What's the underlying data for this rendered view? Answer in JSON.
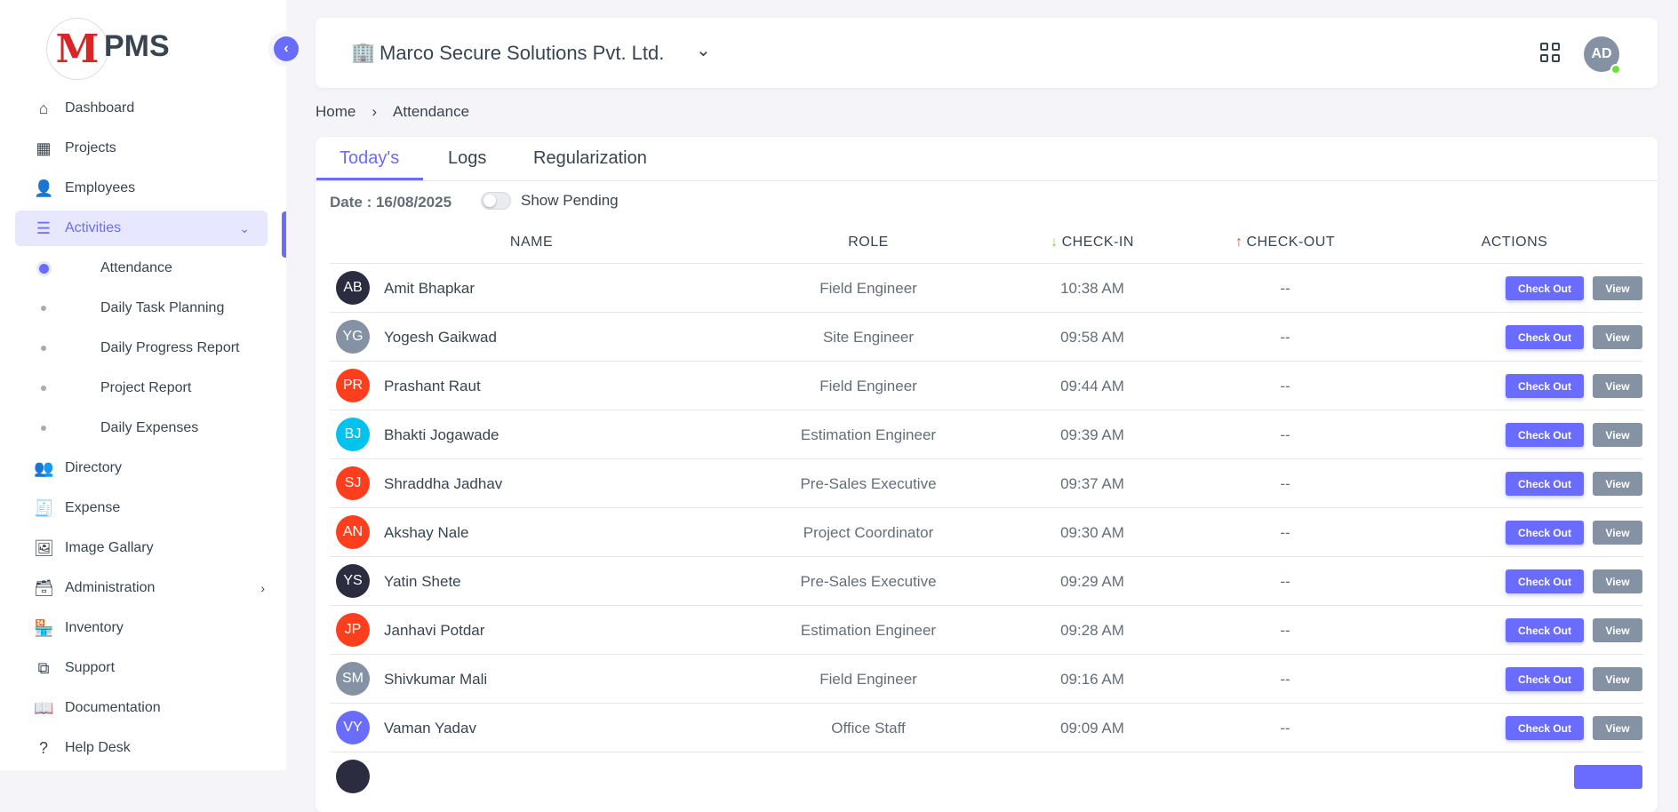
{
  "brand": {
    "name": "PMS",
    "logo_letter": "M"
  },
  "sidebar": {
    "items": [
      {
        "label": "Dashboard",
        "icon": "home-icon",
        "glyph": "⌂"
      },
      {
        "label": "Projects",
        "icon": "building-icon",
        "glyph": "▦"
      },
      {
        "label": "Employees",
        "icon": "user-icon",
        "glyph": "👤"
      },
      {
        "label": "Activities",
        "icon": "list-icon",
        "glyph": "☰",
        "active": true,
        "expanded": true
      },
      {
        "label": "Directory",
        "icon": "contacts-icon",
        "glyph": "👥"
      },
      {
        "label": "Expense",
        "icon": "receipt-icon",
        "glyph": "🧾"
      },
      {
        "label": "Image Gallary",
        "icon": "gallery-icon",
        "glyph": "🖼"
      },
      {
        "label": "Administration",
        "icon": "archive-icon",
        "glyph": "🗃"
      },
      {
        "label": "Inventory",
        "icon": "store-icon",
        "glyph": "🏪"
      },
      {
        "label": "Support",
        "icon": "copy-icon",
        "glyph": "⧉"
      },
      {
        "label": "Documentation",
        "icon": "book-icon",
        "glyph": "📖"
      },
      {
        "label": "Help Desk",
        "icon": "question-icon",
        "glyph": "?"
      }
    ],
    "subitems": [
      {
        "label": "Attendance",
        "active": true
      },
      {
        "label": "Daily Task Planning"
      },
      {
        "label": "Daily Progress Report"
      },
      {
        "label": "Project Report"
      },
      {
        "label": "Daily Expenses"
      }
    ]
  },
  "header": {
    "company": "Marco Secure Solutions Pvt. Ltd.",
    "avatar": "AD"
  },
  "breadcrumb": [
    "Home",
    "Attendance"
  ],
  "tabs": [
    "Today's",
    "Logs",
    "Regularization"
  ],
  "filter": {
    "date_label": "Date : 16/08/2025",
    "toggle_label": "Show Pending",
    "toggle_on": false
  },
  "columns": [
    "NAME",
    "ROLE",
    "CHECK-IN",
    "CHECK-OUT",
    "ACTIONS"
  ],
  "actions": {
    "checkout": "Check Out",
    "view": "View"
  },
  "colors": {
    "accent": "#696cff",
    "checkin_arrow": "#71dd37",
    "checkout_arrow": "#ff3e1d"
  },
  "rows": [
    {
      "initials": "AB",
      "name": "Amit Bhapkar",
      "role": "Field Engineer",
      "checkin": "10:38 AM",
      "checkout": "--",
      "color": "#2b2c40"
    },
    {
      "initials": "YG",
      "name": "Yogesh Gaikwad",
      "role": "Site Engineer",
      "checkin": "09:58 AM",
      "checkout": "--",
      "color": "#8592a3"
    },
    {
      "initials": "PR",
      "name": "Prashant Raut",
      "role": "Field Engineer",
      "checkin": "09:44 AM",
      "checkout": "--",
      "color": "#ff3e1d"
    },
    {
      "initials": "BJ",
      "name": "Bhakti Jogawade",
      "role": "Estimation Engineer",
      "checkin": "09:39 AM",
      "checkout": "--",
      "color": "#03c3ec"
    },
    {
      "initials": "SJ",
      "name": "Shraddha Jadhav",
      "role": "Pre-Sales Executive",
      "checkin": "09:37 AM",
      "checkout": "--",
      "color": "#ff3e1d"
    },
    {
      "initials": "AN",
      "name": "Akshay Nale",
      "role": "Project Coordinator",
      "checkin": "09:30 AM",
      "checkout": "--",
      "color": "#ff3e1d"
    },
    {
      "initials": "YS",
      "name": "Yatin Shete",
      "role": "Pre-Sales Executive",
      "checkin": "09:29 AM",
      "checkout": "--",
      "color": "#2b2c40"
    },
    {
      "initials": "JP",
      "name": "Janhavi Potdar",
      "role": "Estimation Engineer",
      "checkin": "09:28 AM",
      "checkout": "--",
      "color": "#ff3e1d"
    },
    {
      "initials": "SM",
      "name": "Shivkumar Mali",
      "role": "Field Engineer",
      "checkin": "09:16 AM",
      "checkout": "--",
      "color": "#8592a3"
    },
    {
      "initials": "VY",
      "name": "Vaman Yadav",
      "role": "Office Staff",
      "checkin": "09:09 AM",
      "checkout": "--",
      "color": "#696cff"
    }
  ]
}
